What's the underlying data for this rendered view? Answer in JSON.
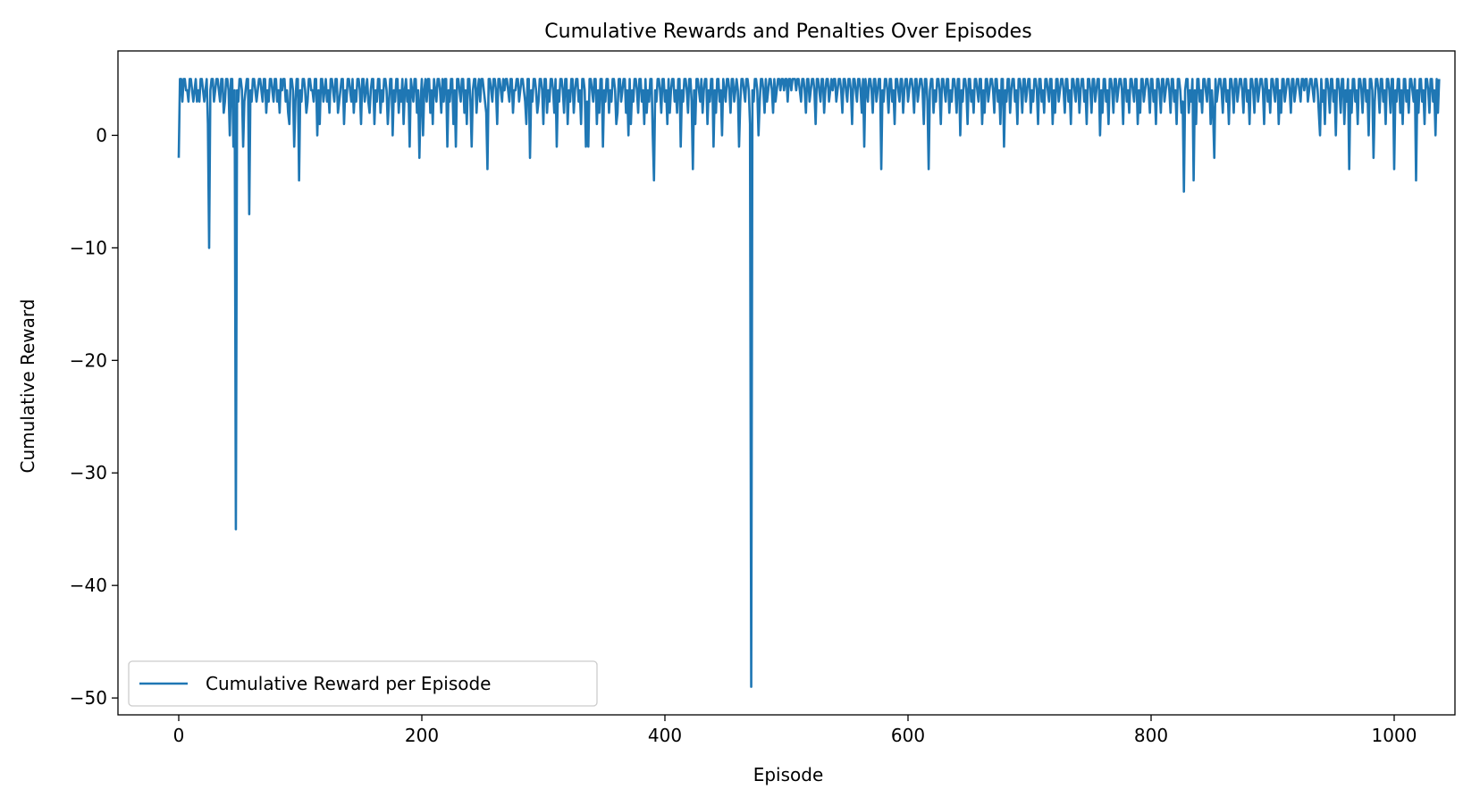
{
  "chart_data": {
    "type": "line",
    "title": "Cumulative Rewards and Penalties Over Episodes",
    "xlabel": "Episode",
    "ylabel": "Cumulative Reward",
    "xlim": [
      -50,
      1050
    ],
    "ylim": [
      -51.5,
      7.5
    ],
    "x_ticks": [
      0,
      200,
      400,
      600,
      800,
      1000
    ],
    "x_tick_labels": [
      "0",
      "200",
      "400",
      "600",
      "800",
      "1000"
    ],
    "y_ticks": [
      0,
      -10,
      -20,
      -30,
      -40,
      -50
    ],
    "y_tick_labels": [
      "0",
      "−10",
      "−20",
      "−30",
      "−40",
      "−50"
    ],
    "grid": false,
    "legend_position": "lower-left",
    "series": [
      {
        "name": "Cumulative Reward per Episode",
        "color": "#1f77b4",
        "x_start": 0,
        "x_step": 1,
        "values": [
          -2,
          5,
          5,
          3,
          5,
          5,
          4,
          4,
          3,
          5,
          5,
          4,
          3,
          4,
          5,
          3,
          4,
          3,
          5,
          5,
          4,
          3,
          4,
          5,
          1,
          -10,
          4,
          5,
          5,
          3,
          4,
          5,
          5,
          4,
          3,
          5,
          5,
          2,
          3,
          5,
          5,
          4,
          0,
          5,
          5,
          -1,
          4,
          -35,
          4,
          3,
          5,
          5,
          4,
          -1,
          3,
          4,
          5,
          5,
          -7,
          4,
          3,
          5,
          5,
          4,
          3,
          4,
          5,
          5,
          4,
          3,
          5,
          5,
          2,
          4,
          3,
          5,
          5,
          4,
          3,
          5,
          5,
          3,
          4,
          2,
          5,
          4,
          5,
          5,
          3,
          4,
          2,
          1,
          5,
          5,
          4,
          -1,
          3,
          5,
          5,
          -4,
          4,
          3,
          5,
          5,
          4,
          2,
          3,
          5,
          5,
          4,
          4,
          3,
          5,
          5,
          0,
          4,
          1,
          5,
          5,
          3,
          4,
          5,
          3,
          4,
          2,
          5,
          5,
          4,
          3,
          5,
          5,
          2,
          3,
          4,
          5,
          5,
          1,
          4,
          3,
          5,
          5,
          4,
          3,
          5,
          2,
          4,
          3,
          5,
          5,
          4,
          1,
          5,
          5,
          3,
          4,
          5,
          3,
          2,
          4,
          5,
          5,
          1,
          4,
          3,
          5,
          5,
          2,
          4,
          3,
          5,
          5,
          4,
          1,
          3,
          5,
          5,
          0,
          4,
          3,
          5,
          5,
          2,
          4,
          3,
          5,
          1,
          4,
          5,
          3,
          4,
          -1,
          5,
          4,
          3,
          5,
          5,
          2,
          4,
          -2,
          3,
          5,
          0,
          4,
          5,
          3,
          5,
          5,
          2,
          4,
          1,
          5,
          4,
          3,
          5,
          5,
          4,
          2,
          5,
          3,
          5,
          5,
          -1,
          4,
          3,
          5,
          5,
          1,
          4,
          -1,
          5,
          5,
          4,
          3,
          5,
          5,
          2,
          4,
          1,
          5,
          5,
          3,
          -1,
          4,
          5,
          5,
          2,
          4,
          5,
          3,
          5,
          5,
          4,
          3,
          2,
          -3,
          5,
          5,
          4,
          3,
          5,
          5,
          4,
          1,
          5,
          5,
          4,
          3,
          5,
          4,
          5,
          5,
          4,
          3,
          5,
          5,
          2,
          4,
          4,
          5,
          5,
          3,
          4,
          5,
          5,
          4,
          3,
          1,
          5,
          5,
          -2,
          4,
          3,
          5,
          5,
          4,
          2,
          3,
          5,
          5,
          4,
          1,
          5,
          5,
          2,
          4,
          3,
          5,
          5,
          4,
          2,
          5,
          -1,
          4,
          3,
          5,
          5,
          4,
          2,
          5,
          5,
          1,
          4,
          3,
          5,
          5,
          2,
          4,
          5,
          5,
          3,
          4,
          1,
          5,
          5,
          4,
          -1,
          3,
          -1,
          5,
          5,
          4,
          3,
          5,
          5,
          1,
          4,
          2,
          5,
          5,
          -1,
          4,
          3,
          5,
          5,
          2,
          4,
          3,
          5,
          5,
          4,
          1,
          2,
          5,
          5,
          3,
          4,
          5,
          5,
          2,
          4,
          0,
          5,
          1,
          4,
          3,
          5,
          5,
          4,
          2,
          5,
          5,
          3,
          4,
          1,
          5,
          2,
          4,
          3,
          5,
          5,
          0,
          -4,
          4,
          3,
          5,
          5,
          4,
          2,
          5,
          5,
          3,
          4,
          1,
          5,
          2,
          4,
          5,
          5,
          3,
          4,
          2,
          5,
          5,
          -1,
          4,
          3,
          5,
          5,
          4,
          2,
          5,
          5,
          3,
          -3,
          4,
          1,
          5,
          5,
          4,
          3,
          5,
          2,
          4,
          5,
          5,
          1,
          4,
          3,
          5,
          5,
          -1,
          4,
          2,
          5,
          5,
          3,
          4,
          0,
          5,
          4,
          3,
          5,
          5,
          4,
          2,
          5,
          5,
          3,
          4,
          5,
          4,
          -1,
          3,
          5,
          5,
          4,
          3,
          5,
          5,
          4,
          1,
          -49,
          4,
          3,
          5,
          5,
          4,
          0,
          3,
          5,
          5,
          4,
          2,
          5,
          3,
          4,
          5,
          5,
          4,
          2,
          5,
          3,
          4,
          5,
          5,
          4,
          5,
          5,
          4,
          5,
          5,
          3,
          5,
          5,
          4,
          5,
          5,
          5,
          4,
          5,
          5,
          4,
          3,
          5,
          5,
          4,
          2,
          5,
          5,
          3,
          4,
          5,
          5,
          4,
          1,
          5,
          5,
          4,
          3,
          5,
          5,
          2,
          4,
          5,
          5,
          3,
          4,
          5,
          4,
          5,
          5,
          3,
          4,
          5,
          5,
          4,
          2,
          5,
          5,
          4,
          3,
          5,
          5,
          4,
          1,
          5,
          5,
          4,
          3,
          5,
          5,
          4,
          2,
          5,
          -1,
          5,
          4,
          3,
          5,
          5,
          4,
          2,
          5,
          5,
          3,
          4,
          5,
          5,
          -3,
          4,
          3,
          5,
          5,
          4,
          2,
          5,
          5,
          3,
          4,
          1,
          5,
          5,
          4,
          3,
          5,
          5,
          2,
          4,
          5,
          5,
          3,
          4,
          5,
          5,
          4,
          2,
          5,
          5,
          3,
          4,
          5,
          5,
          4,
          1,
          5,
          5,
          3,
          -3,
          4,
          5,
          5,
          2,
          4,
          3,
          5,
          5,
          4,
          1,
          5,
          5,
          4,
          3,
          5,
          5,
          2,
          4,
          3,
          5,
          5,
          4,
          2,
          5,
          5,
          0,
          4,
          3,
          5,
          5,
          4,
          1,
          5,
          5,
          3,
          4,
          2,
          5,
          5,
          4,
          3,
          5,
          5,
          1,
          4,
          2,
          5,
          5,
          3,
          4,
          5,
          5,
          4,
          2,
          5,
          5,
          3,
          4,
          1,
          5,
          5,
          -1,
          4,
          3,
          5,
          5,
          2,
          4,
          5,
          5,
          3,
          4,
          1,
          5,
          5,
          4,
          2,
          5,
          5,
          3,
          4,
          5,
          5,
          2,
          4,
          3,
          5,
          5,
          4,
          1,
          5,
          5,
          3,
          4,
          2,
          5,
          5,
          4,
          3,
          5,
          5,
          1,
          4,
          2,
          5,
          5,
          3,
          4,
          5,
          5,
          4,
          2,
          5,
          5,
          3,
          4,
          1,
          5,
          5,
          4,
          3,
          5,
          5,
          2,
          4,
          5,
          5,
          3,
          4,
          1,
          5,
          5,
          4,
          2,
          5,
          5,
          3,
          4,
          5,
          5,
          0,
          4,
          2,
          5,
          5,
          3,
          4,
          1,
          5,
          5,
          4,
          2,
          5,
          5,
          3,
          4,
          5,
          5,
          4,
          1,
          5,
          5,
          3,
          4,
          2,
          5,
          5,
          4,
          3,
          5,
          5,
          1,
          4,
          2,
          5,
          5,
          3,
          4,
          5,
          5,
          4,
          2,
          5,
          5,
          3,
          4,
          1,
          5,
          5,
          4,
          2,
          5,
          5,
          3,
          4,
          5,
          5,
          4,
          2,
          5,
          5,
          3,
          4,
          1,
          5,
          5,
          4,
          2,
          3,
          -5,
          4,
          5,
          5,
          2,
          4,
          3,
          5,
          -4,
          4,
          1,
          5,
          5,
          3,
          4,
          2,
          5,
          5,
          4,
          3,
          5,
          5,
          1,
          4,
          2,
          -2,
          5,
          3,
          4,
          5,
          5,
          4,
          2,
          5,
          5,
          3,
          4,
          1,
          5,
          5,
          4,
          2,
          5,
          5,
          3,
          4,
          5,
          5,
          4,
          2,
          5,
          5,
          3,
          4,
          1,
          5,
          5,
          4,
          2,
          5,
          5,
          3,
          4,
          5,
          5,
          4,
          1,
          5,
          5,
          3,
          4,
          2,
          5,
          5,
          4,
          3,
          5,
          5,
          1,
          4,
          2,
          5,
          5,
          3,
          4,
          5,
          5,
          4,
          2,
          5,
          5,
          3,
          4,
          5,
          5,
          4,
          3,
          5,
          5,
          4,
          5,
          5,
          3,
          4,
          5,
          5,
          4,
          3,
          5,
          5,
          4,
          2,
          0,
          5,
          3,
          4,
          1,
          5,
          5,
          4,
          2,
          5,
          5,
          3,
          4,
          0,
          5,
          5,
          4,
          2,
          5,
          5,
          1,
          4,
          3,
          5,
          -3,
          4,
          2,
          5,
          5,
          3,
          4,
          1,
          5,
          5,
          4,
          2,
          5,
          5,
          3,
          4,
          0,
          5,
          5,
          4,
          -2,
          3,
          5,
          5,
          4,
          2,
          5,
          5,
          3,
          4,
          1,
          5,
          5,
          4,
          2,
          5,
          5,
          -3,
          4,
          3,
          5,
          5,
          2,
          4,
          1,
          5,
          5,
          3,
          4,
          2,
          5,
          5,
          4,
          3,
          5,
          -4,
          4,
          2,
          5,
          5,
          3,
          4,
          1,
          5,
          5,
          4,
          2,
          5,
          5,
          3,
          4,
          0,
          5,
          2,
          5
        ]
      }
    ]
  }
}
